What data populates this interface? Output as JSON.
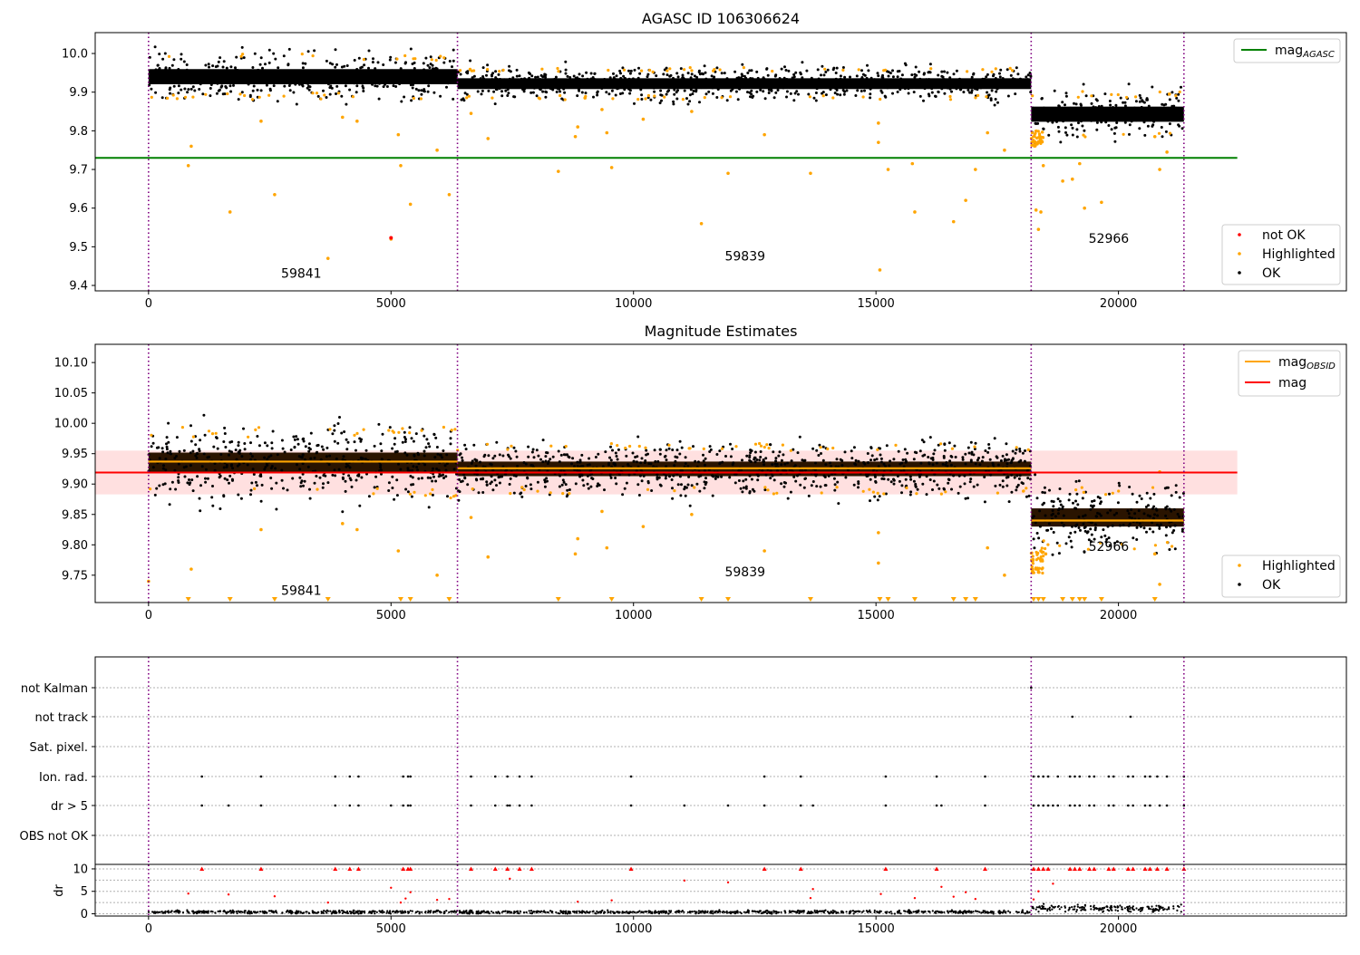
{
  "chart_data": [
    {
      "type": "scatter",
      "title": "AGASC ID 106306624",
      "xlim": [
        -1100,
        24700
      ],
      "ylim": [
        9.386,
        10.054
      ],
      "x_ticks": [
        "0",
        "5000",
        "10000",
        "15000",
        "20000"
      ],
      "y_ticks": [
        "9.4",
        "9.5",
        "9.6",
        "9.7",
        "9.8",
        "9.9",
        "10.0"
      ],
      "obsid_boundaries": [
        0,
        6370,
        18200,
        21350
      ],
      "obsid_labels": [
        {
          "text": "59841",
          "x": 3150,
          "y": 9.42
        },
        {
          "text": "59839",
          "x": 12300,
          "y": 9.465
        },
        {
          "text": "52966",
          "x": 19800,
          "y": 9.51
        }
      ],
      "agasc_mag": 9.73,
      "agasc_mag_xrange": [
        -1100,
        22450
      ],
      "segment_bands": [
        {
          "x0": 0,
          "x1": 6370,
          "center": 9.94,
          "half_width": 0.028
        },
        {
          "x0": 6370,
          "x1": 18200,
          "center": 9.922,
          "half_width": 0.02
        },
        {
          "x0": 18200,
          "x1": 21350,
          "center": 9.843,
          "half_width": 0.028
        }
      ],
      "highlighted_points": [
        [
          820,
          9.71
        ],
        [
          880,
          9.76
        ],
        [
          1680,
          9.59
        ],
        [
          2320,
          9.825
        ],
        [
          2600,
          9.635
        ],
        [
          3700,
          9.47
        ],
        [
          4000,
          9.835
        ],
        [
          4300,
          9.825
        ],
        [
          5000,
          9.52
        ],
        [
          5150,
          9.79
        ],
        [
          5200,
          9.71
        ],
        [
          5400,
          9.61
        ],
        [
          5950,
          9.75
        ],
        [
          6200,
          9.635
        ],
        [
          6650,
          9.845
        ],
        [
          7000,
          9.78
        ],
        [
          8450,
          9.695
        ],
        [
          8850,
          9.81
        ],
        [
          8800,
          9.785
        ],
        [
          9000,
          9.885
        ],
        [
          9350,
          9.855
        ],
        [
          9450,
          9.795
        ],
        [
          9550,
          9.705
        ],
        [
          10200,
          9.83
        ],
        [
          11200,
          9.85
        ],
        [
          11400,
          9.56
        ],
        [
          11950,
          9.69
        ],
        [
          12700,
          9.79
        ],
        [
          13650,
          9.69
        ],
        [
          15050,
          9.82
        ],
        [
          15050,
          9.77
        ],
        [
          15080,
          9.44
        ],
        [
          15250,
          9.7
        ],
        [
          15750,
          9.715
        ],
        [
          15800,
          9.59
        ],
        [
          16600,
          9.565
        ],
        [
          16850,
          9.62
        ],
        [
          17050,
          9.7
        ],
        [
          17300,
          9.795
        ],
        [
          17650,
          9.75
        ],
        [
          18350,
          9.545
        ],
        [
          18450,
          9.71
        ],
        [
          18850,
          9.67
        ],
        [
          19050,
          9.675
        ],
        [
          19200,
          9.715
        ],
        [
          19300,
          9.6
        ],
        [
          19650,
          9.615
        ],
        [
          20750,
          9.785
        ],
        [
          20850,
          9.7
        ],
        [
          21000,
          9.745
        ],
        [
          21050,
          9.895
        ],
        [
          18400,
          9.59
        ],
        [
          18300,
          9.595
        ]
      ],
      "not_ok_points": [
        [
          5000,
          9.523
        ]
      ],
      "legend_upper": [
        {
          "label": "mag",
          "subscript": "AGASC",
          "color": "#008000",
          "kind": "line"
        }
      ],
      "legend_lower": [
        {
          "label": "not OK",
          "color": "#ff0000",
          "kind": "dot"
        },
        {
          "label": "Highlighted",
          "color": "#ffa500",
          "kind": "dot"
        },
        {
          "label": "OK",
          "color": "#000000",
          "kind": "dot"
        }
      ]
    },
    {
      "type": "scatter",
      "title": "Magnitude Estimates",
      "xlim": [
        -1100,
        24700
      ],
      "ylim": [
        9.705,
        10.13
      ],
      "x_ticks": [
        "0",
        "5000",
        "10000",
        "15000",
        "20000"
      ],
      "y_ticks": [
        "9.75",
        "9.80",
        "9.85",
        "9.90",
        "9.95",
        "10.00",
        "10.05",
        "10.10"
      ],
      "obsid_boundaries": [
        0,
        6370,
        18200,
        21350
      ],
      "obsid_labels": [
        {
          "text": "59841",
          "x": 3150,
          "y": 9.718
        },
        {
          "text": "59839",
          "x": 12300,
          "y": 9.748
        },
        {
          "text": "52966",
          "x": 19800,
          "y": 9.79
        }
      ],
      "mag": 9.919,
      "mag_band": [
        9.883,
        9.955
      ],
      "mag_xrange": [
        -1100,
        22450
      ],
      "mag_obsid_segments": [
        {
          "x0": 0,
          "x1": 6370,
          "value": 9.937
        },
        {
          "x0": 6370,
          "x1": 18200,
          "value": 9.926
        },
        {
          "x0": 18200,
          "x1": 21350,
          "value": 9.84
        }
      ],
      "segment_bands": [
        {
          "x0": 0,
          "x1": 6370,
          "center": 9.935,
          "half_width": 0.028
        },
        {
          "x0": 6370,
          "x1": 18200,
          "center": 9.925,
          "half_width": 0.02
        },
        {
          "x0": 18200,
          "x1": 21350,
          "center": 9.845,
          "half_width": 0.025
        }
      ],
      "highlighted_points": [
        [
          0,
          9.74
        ],
        [
          880,
          9.76
        ],
        [
          2320,
          9.825
        ],
        [
          4000,
          9.835
        ],
        [
          4300,
          9.825
        ],
        [
          5150,
          9.79
        ],
        [
          5950,
          9.75
        ],
        [
          6650,
          9.845
        ],
        [
          7000,
          9.78
        ],
        [
          8850,
          9.81
        ],
        [
          8800,
          9.785
        ],
        [
          9350,
          9.855
        ],
        [
          9450,
          9.795
        ],
        [
          10200,
          9.83
        ],
        [
          11200,
          9.85
        ],
        [
          12700,
          9.79
        ],
        [
          15050,
          9.82
        ],
        [
          15050,
          9.77
        ],
        [
          17300,
          9.795
        ],
        [
          17650,
          9.75
        ],
        [
          18400,
          9.79
        ],
        [
          20750,
          9.785
        ],
        [
          20850,
          9.735
        ],
        [
          18300,
          9.76
        ],
        [
          18350,
          9.755
        ],
        [
          18500,
          9.785
        ],
        [
          20850,
          9.92
        ]
      ],
      "floor_markers": [
        820,
        1680,
        2600,
        3700,
        5200,
        5400,
        6200,
        8450,
        9550,
        11400,
        11950,
        13650,
        15080,
        15250,
        15800,
        16600,
        16850,
        17050,
        18250,
        18350,
        18450,
        18850,
        19050,
        19200,
        19300,
        19650,
        20750
      ],
      "legend_upper": [
        {
          "label": "mag",
          "subscript": "OBSID",
          "color": "#ffa500",
          "kind": "line"
        },
        {
          "label": "mag",
          "subscript": "",
          "color": "#ff0000",
          "kind": "line"
        }
      ],
      "legend_lower": [
        {
          "label": "Highlighted",
          "color": "#ffa500",
          "kind": "dot"
        },
        {
          "label": "OK",
          "color": "#000000",
          "kind": "dot"
        }
      ]
    },
    {
      "type": "scatter",
      "xlim": [
        -1100,
        24700
      ],
      "x_ticks": [
        "0",
        "5000",
        "10000",
        "15000",
        "20000"
      ],
      "obsid_boundaries": [
        0,
        6370,
        18200,
        21350
      ],
      "flag_rows": [
        "not Kalman",
        "not track",
        "Sat. pixel.",
        "Ion. rad.",
        "dr > 5",
        "OBS not OK"
      ],
      "flag_points": {
        "not Kalman": [
          18200
        ],
        "not track": [
          19050,
          20250
        ],
        "Sat. pixel.": [],
        "Ion. rad.": [
          1100,
          2320,
          3850,
          4150,
          4330,
          5250,
          5350,
          5400,
          6650,
          7150,
          7400,
          7650,
          7900,
          9950,
          12700,
          13450,
          15200,
          16250,
          17250,
          18250,
          18350,
          18450,
          18550,
          18750,
          19000,
          19100,
          19200,
          19400,
          19500,
          19800,
          19900,
          20200,
          20300,
          20550,
          20650,
          20800,
          21000,
          21350
        ],
        "dr > 5": [
          1100,
          1650,
          2320,
          3850,
          4150,
          4330,
          5000,
          5250,
          5350,
          5400,
          6650,
          7150,
          7400,
          7450,
          7650,
          7900,
          9950,
          11050,
          11950,
          12700,
          13450,
          13700,
          15200,
          16250,
          16350,
          17250,
          18250,
          18350,
          18450,
          18550,
          18650,
          18750,
          19000,
          19100,
          19200,
          19400,
          19500,
          19800,
          19900,
          20200,
          20300,
          20550,
          20650,
          20850,
          21000,
          21350
        ],
        "OBS not OK": []
      },
      "dr": {
        "ylabel": "dr",
        "ylim": [
          -0.5,
          11
        ],
        "y_ticks": [
          "0",
          "5",
          "10"
        ],
        "clipped_points": [
          1100,
          2320,
          3850,
          4150,
          4330,
          5250,
          5350,
          5400,
          6650,
          7150,
          7400,
          7650,
          7900,
          9950,
          12700,
          13450,
          15200,
          16250,
          17250,
          18250,
          18350,
          18450,
          18550,
          19000,
          19100,
          19200,
          19400,
          19500,
          19800,
          19900,
          20200,
          20300,
          20550,
          20650,
          20800,
          21000,
          21350
        ],
        "mid_points": [
          [
            820,
            4.5
          ],
          [
            1650,
            4.3
          ],
          [
            2600,
            3.9
          ],
          [
            3700,
            2.5
          ],
          [
            5000,
            5.8
          ],
          [
            5200,
            2.5
          ],
          [
            5300,
            3.4
          ],
          [
            5400,
            4.8
          ],
          [
            5950,
            3.1
          ],
          [
            6200,
            3.3
          ],
          [
            7450,
            7.8
          ],
          [
            8850,
            2.7
          ],
          [
            9550,
            3.0
          ],
          [
            11050,
            7.4
          ],
          [
            11950,
            7.0
          ],
          [
            13700,
            5.5
          ],
          [
            13650,
            3.5
          ],
          [
            15100,
            4.4
          ],
          [
            15800,
            3.5
          ],
          [
            16350,
            6.0
          ],
          [
            16600,
            3.8
          ],
          [
            16850,
            4.8
          ],
          [
            17050,
            3.3
          ],
          [
            18350,
            5.0
          ],
          [
            18650,
            6.7
          ],
          [
            18250,
            3.2
          ]
        ]
      }
    }
  ]
}
